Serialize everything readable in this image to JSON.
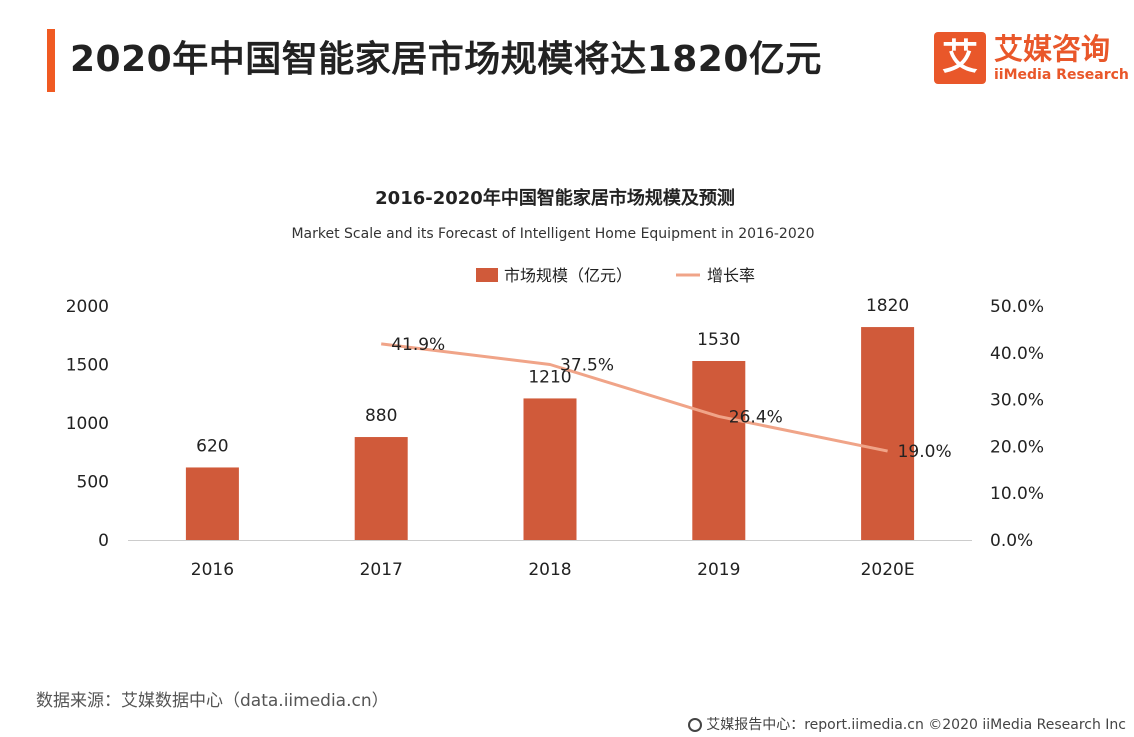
{
  "header": {
    "title": "2020年中国智能家居市场规模将达1820亿元"
  },
  "logo": {
    "icon_char": "艾",
    "cn": "艾媒咨询",
    "en": "iiMedia Research"
  },
  "colors": {
    "accent": "#f05a22",
    "bar": "#d05a3a",
    "line": "#f0a488"
  },
  "chart_data": {
    "type": "bar",
    "title": "2016-2020年中国智能家居市场规模及预测",
    "subtitle": "Market Scale and its Forecast of Intelligent Home Equipment in 2016-2020",
    "categories": [
      "2016",
      "2017",
      "2018",
      "2019",
      "2020E"
    ],
    "series": [
      {
        "name": "市场规模（亿元）",
        "type": "bar",
        "axis": "left",
        "values": [
          620,
          880,
          1210,
          1530,
          1820
        ],
        "labels": [
          "620",
          "880",
          "1210",
          "1530",
          "1820"
        ]
      },
      {
        "name": "增长率",
        "type": "line",
        "axis": "right",
        "values": [
          null,
          41.9,
          37.5,
          26.4,
          19.0
        ],
        "labels": [
          "",
          "41.9%",
          "37.5%",
          "26.4%",
          "19.0%"
        ]
      }
    ],
    "y_left": {
      "min": 0,
      "max": 2000,
      "ticks": [
        0,
        500,
        1000,
        1500,
        2000
      ],
      "tick_labels": [
        "0",
        "500",
        "1000",
        "1500",
        "2000"
      ]
    },
    "y_right": {
      "min": 0,
      "max": 50,
      "ticks": [
        0,
        10,
        20,
        30,
        40,
        50
      ],
      "tick_labels": [
        "0.0%",
        "10.0%",
        "20.0%",
        "30.0%",
        "40.0%",
        "50.0%"
      ]
    },
    "legend_position": "top-center",
    "grid": false
  },
  "footer": {
    "source": "数据来源：艾媒数据中心（data.iimedia.cn）",
    "copyright": "艾媒报告中心：report.iimedia.cn  ©2020  iiMedia Research  Inc"
  }
}
